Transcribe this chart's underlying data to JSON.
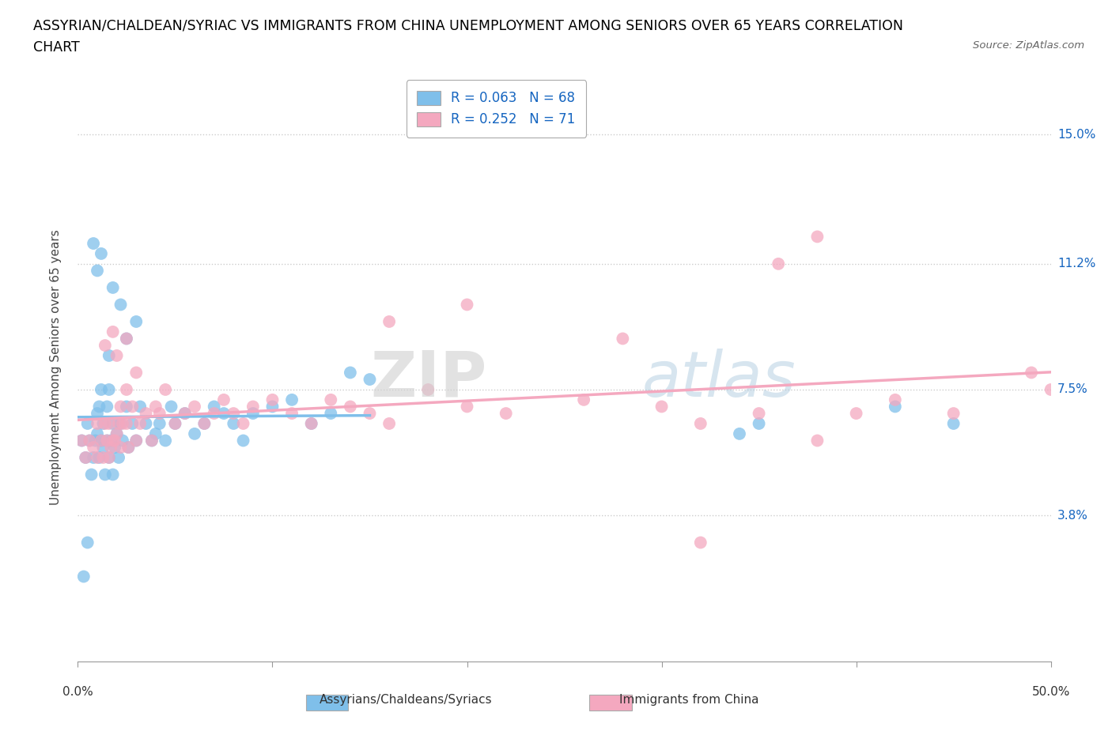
{
  "title_line1": "ASSYRIAN/CHALDEAN/SYRIAC VS IMMIGRANTS FROM CHINA UNEMPLOYMENT AMONG SENIORS OVER 65 YEARS CORRELATION",
  "title_line2": "CHART",
  "source_text": "Source: ZipAtlas.com",
  "ylabel": "Unemployment Among Seniors over 65 years",
  "ytick_labels": [
    "3.8%",
    "7.5%",
    "11.2%",
    "15.0%"
  ],
  "ytick_values": [
    0.038,
    0.075,
    0.112,
    0.15
  ],
  "xlim": [
    0.0,
    0.5
  ],
  "ylim": [
    -0.005,
    0.168
  ],
  "xtick_label_left": "0.0%",
  "xtick_label_right": "50.0%",
  "legend1_label": "R = 0.063   N = 68",
  "legend2_label": "R = 0.252   N = 71",
  "bottom_label1": "Assyrians/Chaldeans/Syriacs",
  "bottom_label2": "Immigrants from China",
  "color_blue": "#7fbfea",
  "color_pink": "#f4a8bf",
  "color_legend_text": "#1565c0",
  "watermark_zip": "ZIP",
  "watermark_atlas": "atlas",
  "blue_R": 0.063,
  "blue_N": 68,
  "pink_R": 0.252,
  "pink_N": 71,
  "blue_scatter_x": [
    0.002,
    0.004,
    0.005,
    0.006,
    0.007,
    0.008,
    0.009,
    0.01,
    0.01,
    0.011,
    0.011,
    0.012,
    0.012,
    0.013,
    0.013,
    0.014,
    0.015,
    0.015,
    0.016,
    0.016,
    0.017,
    0.018,
    0.018,
    0.019,
    0.02,
    0.021,
    0.022,
    0.023,
    0.025,
    0.026,
    0.028,
    0.03,
    0.032,
    0.035,
    0.038,
    0.04,
    0.042,
    0.045,
    0.048,
    0.05,
    0.055,
    0.06,
    0.065,
    0.07,
    0.075,
    0.08,
    0.085,
    0.09,
    0.1,
    0.11,
    0.12,
    0.13,
    0.14,
    0.15,
    0.018,
    0.022,
    0.025,
    0.03,
    0.016,
    0.01,
    0.008,
    0.012,
    0.35,
    0.42,
    0.34,
    0.45,
    0.005,
    0.003
  ],
  "blue_scatter_y": [
    0.06,
    0.055,
    0.065,
    0.06,
    0.05,
    0.055,
    0.06,
    0.062,
    0.068,
    0.055,
    0.07,
    0.06,
    0.075,
    0.058,
    0.065,
    0.05,
    0.06,
    0.07,
    0.055,
    0.075,
    0.06,
    0.065,
    0.05,
    0.058,
    0.062,
    0.055,
    0.065,
    0.06,
    0.07,
    0.058,
    0.065,
    0.06,
    0.07,
    0.065,
    0.06,
    0.062,
    0.065,
    0.06,
    0.07,
    0.065,
    0.068,
    0.062,
    0.065,
    0.07,
    0.068,
    0.065,
    0.06,
    0.068,
    0.07,
    0.072,
    0.065,
    0.068,
    0.08,
    0.078,
    0.105,
    0.1,
    0.09,
    0.095,
    0.085,
    0.11,
    0.118,
    0.115,
    0.065,
    0.07,
    0.062,
    0.065,
    0.03,
    0.02
  ],
  "pink_scatter_x": [
    0.002,
    0.004,
    0.006,
    0.008,
    0.01,
    0.01,
    0.012,
    0.013,
    0.014,
    0.015,
    0.016,
    0.016,
    0.017,
    0.018,
    0.019,
    0.02,
    0.021,
    0.022,
    0.022,
    0.023,
    0.025,
    0.025,
    0.026,
    0.028,
    0.03,
    0.032,
    0.035,
    0.038,
    0.04,
    0.042,
    0.045,
    0.05,
    0.055,
    0.06,
    0.065,
    0.07,
    0.075,
    0.08,
    0.085,
    0.09,
    0.1,
    0.11,
    0.12,
    0.13,
    0.14,
    0.15,
    0.16,
    0.18,
    0.2,
    0.014,
    0.02,
    0.025,
    0.03,
    0.018,
    0.22,
    0.26,
    0.3,
    0.35,
    0.28,
    0.32,
    0.38,
    0.4,
    0.42,
    0.45,
    0.49,
    0.5,
    0.32,
    0.16,
    0.2,
    0.38,
    0.36
  ],
  "pink_scatter_y": [
    0.06,
    0.055,
    0.06,
    0.058,
    0.065,
    0.055,
    0.06,
    0.055,
    0.065,
    0.06,
    0.055,
    0.065,
    0.058,
    0.06,
    0.06,
    0.062,
    0.065,
    0.058,
    0.07,
    0.065,
    0.075,
    0.065,
    0.058,
    0.07,
    0.06,
    0.065,
    0.068,
    0.06,
    0.07,
    0.068,
    0.075,
    0.065,
    0.068,
    0.07,
    0.065,
    0.068,
    0.072,
    0.068,
    0.065,
    0.07,
    0.072,
    0.068,
    0.065,
    0.072,
    0.07,
    0.068,
    0.065,
    0.075,
    0.07,
    0.088,
    0.085,
    0.09,
    0.08,
    0.092,
    0.068,
    0.072,
    0.07,
    0.068,
    0.09,
    0.065,
    0.06,
    0.068,
    0.072,
    0.068,
    0.08,
    0.075,
    0.03,
    0.095,
    0.1,
    0.12,
    0.112
  ],
  "grid_color": "#cccccc"
}
